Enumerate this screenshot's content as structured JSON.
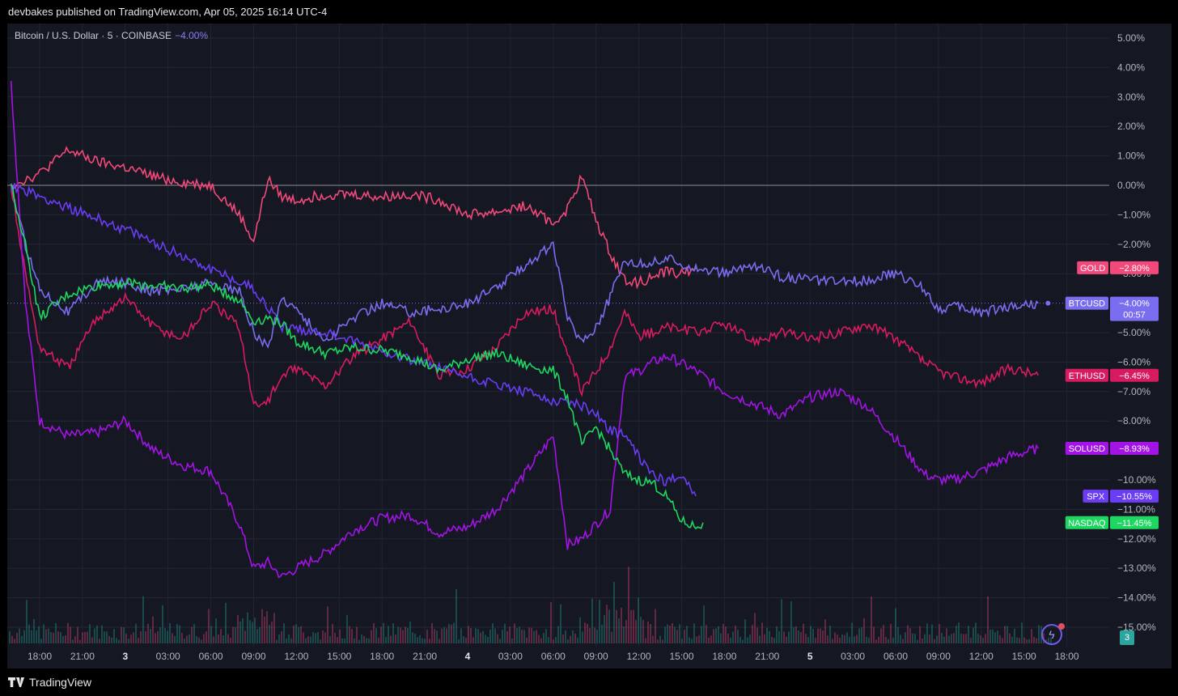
{
  "header": {
    "published": "devbakes published on TradingView.com, Apr 05, 2025 16:14 UTC-4"
  },
  "legend": {
    "symbol": "Bitcoin / U.S. Dollar · 5 · COINBASE",
    "change": "−4.00%"
  },
  "footer": {
    "brand": "TradingView"
  },
  "volume_badge": "3",
  "colors": {
    "background": "#151822",
    "gold": "#f2497a",
    "btcusd": "#7a6df0",
    "ethusd": "#d81b60",
    "solusd": "#a313e6",
    "spx": "#6a3df5",
    "nasdaq": "#1ed760"
  },
  "icons": {
    "brand": "tradingview-logo-icon",
    "alert": "lightning-bolt-icon"
  },
  "chart_data": {
    "type": "line",
    "yaxis": {
      "unit": "%",
      "range": [
        -15.5,
        5.5
      ],
      "position": "right",
      "ticks": [
        "5.00%",
        "4.00%",
        "3.00%",
        "2.00%",
        "1.00%",
        "0.00%",
        "−1.00%",
        "−2.00%",
        "−3.00%",
        "−5.00%",
        "−6.00%",
        "−7.00%",
        "−8.00%",
        "−10.00%",
        "−11.00%",
        "−12.00%",
        "−13.00%",
        "−14.00%",
        "−15.00%"
      ],
      "tick_values": [
        5,
        4,
        3,
        2,
        1,
        0,
        -1,
        -2,
        -3,
        -5,
        -6,
        -7,
        -8,
        -10,
        -11,
        -12,
        -13,
        -14,
        -15
      ]
    },
    "xaxis": {
      "ticks": [
        "18:00",
        "21:00",
        "3",
        "03:00",
        "06:00",
        "09:00",
        "12:00",
        "15:00",
        "18:00",
        "21:00",
        "4",
        "03:00",
        "06:00",
        "09:00",
        "12:00",
        "15:00",
        "18:00",
        "21:00",
        "5",
        "03:00",
        "06:00",
        "09:00",
        "12:00",
        "15:00",
        "18:00"
      ],
      "major_ticks": [
        "3",
        "4",
        "5"
      ]
    },
    "grid": true,
    "series": [
      {
        "name": "GOLD",
        "last": "−2.80%",
        "last_value": -2.8,
        "color": "#f2497a",
        "x": [
          "16:00",
          "18:00",
          "20:00",
          "22:00",
          "3",
          "02:00",
          "04:00",
          "06:00",
          "07:00",
          "08:00",
          "09:00",
          "10:00",
          "11:00",
          "12:00",
          "14:00",
          "16:00",
          "18:00",
          "20:00",
          "22:00",
          "4",
          "02:00",
          "04:00",
          "06:00",
          "07:00",
          "08:00",
          "09:00",
          "10:00",
          "11:00",
          "12:00",
          "13:00",
          "14:00",
          "15:00",
          "16:00"
        ],
        "values": [
          0.0,
          0.4,
          1.2,
          0.8,
          0.6,
          0.3,
          0.1,
          0.0,
          -0.5,
          -1.0,
          -1.9,
          0.2,
          -0.4,
          -0.5,
          -0.3,
          -0.3,
          -0.4,
          -0.3,
          -0.5,
          -1.0,
          -0.9,
          -0.7,
          -1.3,
          -0.8,
          0.3,
          -1.2,
          -2.3,
          -3.2,
          -3.3,
          -3.1,
          -2.9,
          -3.0,
          -2.8
        ]
      },
      {
        "name": "BTCUSD",
        "last": "−4.00%",
        "last_value": -4.0,
        "countdown": "00:57",
        "color": "#7a6df0",
        "x": [
          "16:00",
          "17:00",
          "18:00",
          "20:00",
          "22:00",
          "3",
          "02:00",
          "04:00",
          "06:00",
          "08:00",
          "09:00",
          "10:00",
          "11:00",
          "12:00",
          "14:00",
          "16:00",
          "18:00",
          "20:00",
          "22:00",
          "4",
          "02:00",
          "04:00",
          "06:00",
          "07:00",
          "08:00",
          "09:00",
          "10:00",
          "11:00",
          "12:00",
          "13:00",
          "14:00",
          "16:00",
          "18:00",
          "20:00",
          "22:00",
          "5",
          "02:00",
          "04:00",
          "06:00",
          "08:00",
          "09:00",
          "10:00",
          "12:00",
          "14:00",
          "16:00"
        ],
        "values": [
          0.0,
          -2.0,
          -3.5,
          -4.3,
          -3.3,
          -3.3,
          -3.6,
          -3.5,
          -3.3,
          -3.6,
          -5.0,
          -5.5,
          -3.8,
          -4.2,
          -5.3,
          -4.5,
          -4.0,
          -4.3,
          -4.2,
          -4.0,
          -3.5,
          -2.7,
          -2.0,
          -4.5,
          -5.3,
          -4.8,
          -3.8,
          -2.5,
          -2.7,
          -2.6,
          -2.5,
          -2.8,
          -3.0,
          -2.7,
          -3.1,
          -3.2,
          -3.3,
          -3.2,
          -3.0,
          -3.5,
          -4.2,
          -4.1,
          -4.3,
          -4.1,
          -4.0
        ]
      },
      {
        "name": "ETHUSD",
        "last": "−6.45%",
        "last_value": -6.45,
        "color": "#d81b60",
        "x": [
          "16:00",
          "17:00",
          "18:00",
          "20:00",
          "22:00",
          "3",
          "02:00",
          "04:00",
          "06:00",
          "08:00",
          "09:00",
          "10:00",
          "11:00",
          "12:00",
          "14:00",
          "16:00",
          "18:00",
          "20:00",
          "22:00",
          "4",
          "02:00",
          "04:00",
          "06:00",
          "07:00",
          "08:00",
          "09:00",
          "10:00",
          "11:00",
          "12:00",
          "13:00",
          "14:00",
          "16:00",
          "18:00",
          "20:00",
          "22:00",
          "5",
          "02:00",
          "04:00",
          "06:00",
          "08:00",
          "09:00",
          "10:00",
          "12:00",
          "14:00",
          "16:00"
        ],
        "values": [
          0.0,
          -3.0,
          -5.5,
          -6.2,
          -4.5,
          -3.8,
          -4.8,
          -5.2,
          -4.0,
          -4.8,
          -7.5,
          -7.3,
          -6.5,
          -6.2,
          -6.8,
          -5.8,
          -5.2,
          -4.6,
          -6.5,
          -6.2,
          -5.5,
          -4.3,
          -4.2,
          -5.8,
          -7.0,
          -6.3,
          -5.5,
          -4.3,
          -5.1,
          -5.0,
          -4.8,
          -5.0,
          -4.7,
          -5.3,
          -5.0,
          -5.2,
          -5.0,
          -4.7,
          -5.2,
          -6.0,
          -6.3,
          -6.5,
          -6.7,
          -6.2,
          -6.45
        ]
      },
      {
        "name": "SOLUSD",
        "last": "−8.93%",
        "last_value": -8.93,
        "color": "#a313e6",
        "x": [
          "16:00",
          "17:00",
          "18:00",
          "20:00",
          "22:00",
          "3",
          "02:00",
          "04:00",
          "06:00",
          "08:00",
          "09:00",
          "10:00",
          "11:00",
          "12:00",
          "14:00",
          "16:00",
          "18:00",
          "20:00",
          "22:00",
          "4",
          "02:00",
          "04:00",
          "06:00",
          "07:00",
          "08:00",
          "09:00",
          "10:00",
          "11:00",
          "12:00",
          "13:00",
          "14:00",
          "16:00",
          "18:00",
          "20:00",
          "22:00",
          "5",
          "02:00",
          "04:00",
          "06:00",
          "08:00",
          "09:00",
          "10:00",
          "12:00",
          "14:00",
          "16:00"
        ],
        "values": [
          3.5,
          -4.0,
          -8.0,
          -8.5,
          -8.4,
          -8.0,
          -9.0,
          -9.5,
          -9.7,
          -11.5,
          -13.0,
          -12.8,
          -13.3,
          -13.0,
          -12.5,
          -11.7,
          -11.3,
          -11.2,
          -11.8,
          -11.6,
          -11.0,
          -9.8,
          -8.5,
          -12.2,
          -12.0,
          -11.5,
          -11.0,
          -6.5,
          -6.3,
          -6.0,
          -5.8,
          -6.3,
          -7.0,
          -7.4,
          -7.8,
          -7.2,
          -7.0,
          -7.5,
          -8.6,
          -9.8,
          -10.0,
          -10.0,
          -9.7,
          -9.2,
          -8.93
        ]
      },
      {
        "name": "SPX",
        "last": "−10.55%",
        "last_value": -10.55,
        "color": "#6a3df5",
        "x": [
          "16:00",
          "3",
          "09:00",
          "11:00",
          "14:00",
          "4",
          "06:00",
          "07:00",
          "08:00",
          "09:00",
          "10:00",
          "11:00",
          "12:00",
          "13:00",
          "14:00",
          "15:00",
          "16:00"
        ],
        "values": [
          0.0,
          -1.5,
          -3.5,
          -4.8,
          -5.0,
          -6.5,
          -7.3,
          -7.3,
          -7.5,
          -7.7,
          -8.3,
          -8.5,
          -9.2,
          -9.8,
          -10.1,
          -9.8,
          -10.55
        ]
      },
      {
        "name": "NASDAQ",
        "last": "−11.45%",
        "last_value": -11.45,
        "color": "#1ed760",
        "x": [
          "16:00",
          "17:00",
          "18:00",
          "20:00",
          "22:00",
          "3",
          "02:00",
          "04:00",
          "06:00",
          "08:00",
          "09:00",
          "10:00",
          "11:00",
          "12:00",
          "14:00",
          "16:00",
          "18:00",
          "20:00",
          "22:00",
          "4",
          "02:00",
          "04:00",
          "06:00",
          "07:00",
          "08:00",
          "09:00",
          "10:00",
          "11:00",
          "12:00",
          "13:00",
          "14:00",
          "15:00",
          "16:00",
          "16:30"
        ],
        "values": [
          0.0,
          -2.0,
          -4.5,
          -3.7,
          -3.4,
          -3.3,
          -3.4,
          -3.5,
          -3.4,
          -3.9,
          -4.6,
          -4.5,
          -4.7,
          -5.3,
          -5.7,
          -5.5,
          -5.6,
          -5.8,
          -6.3,
          -5.9,
          -5.7,
          -6.1,
          -6.3,
          -7.2,
          -8.8,
          -8.2,
          -9.0,
          -9.8,
          -10.0,
          -10.1,
          -10.6,
          -11.4,
          -11.6,
          -11.45
        ]
      }
    ]
  }
}
